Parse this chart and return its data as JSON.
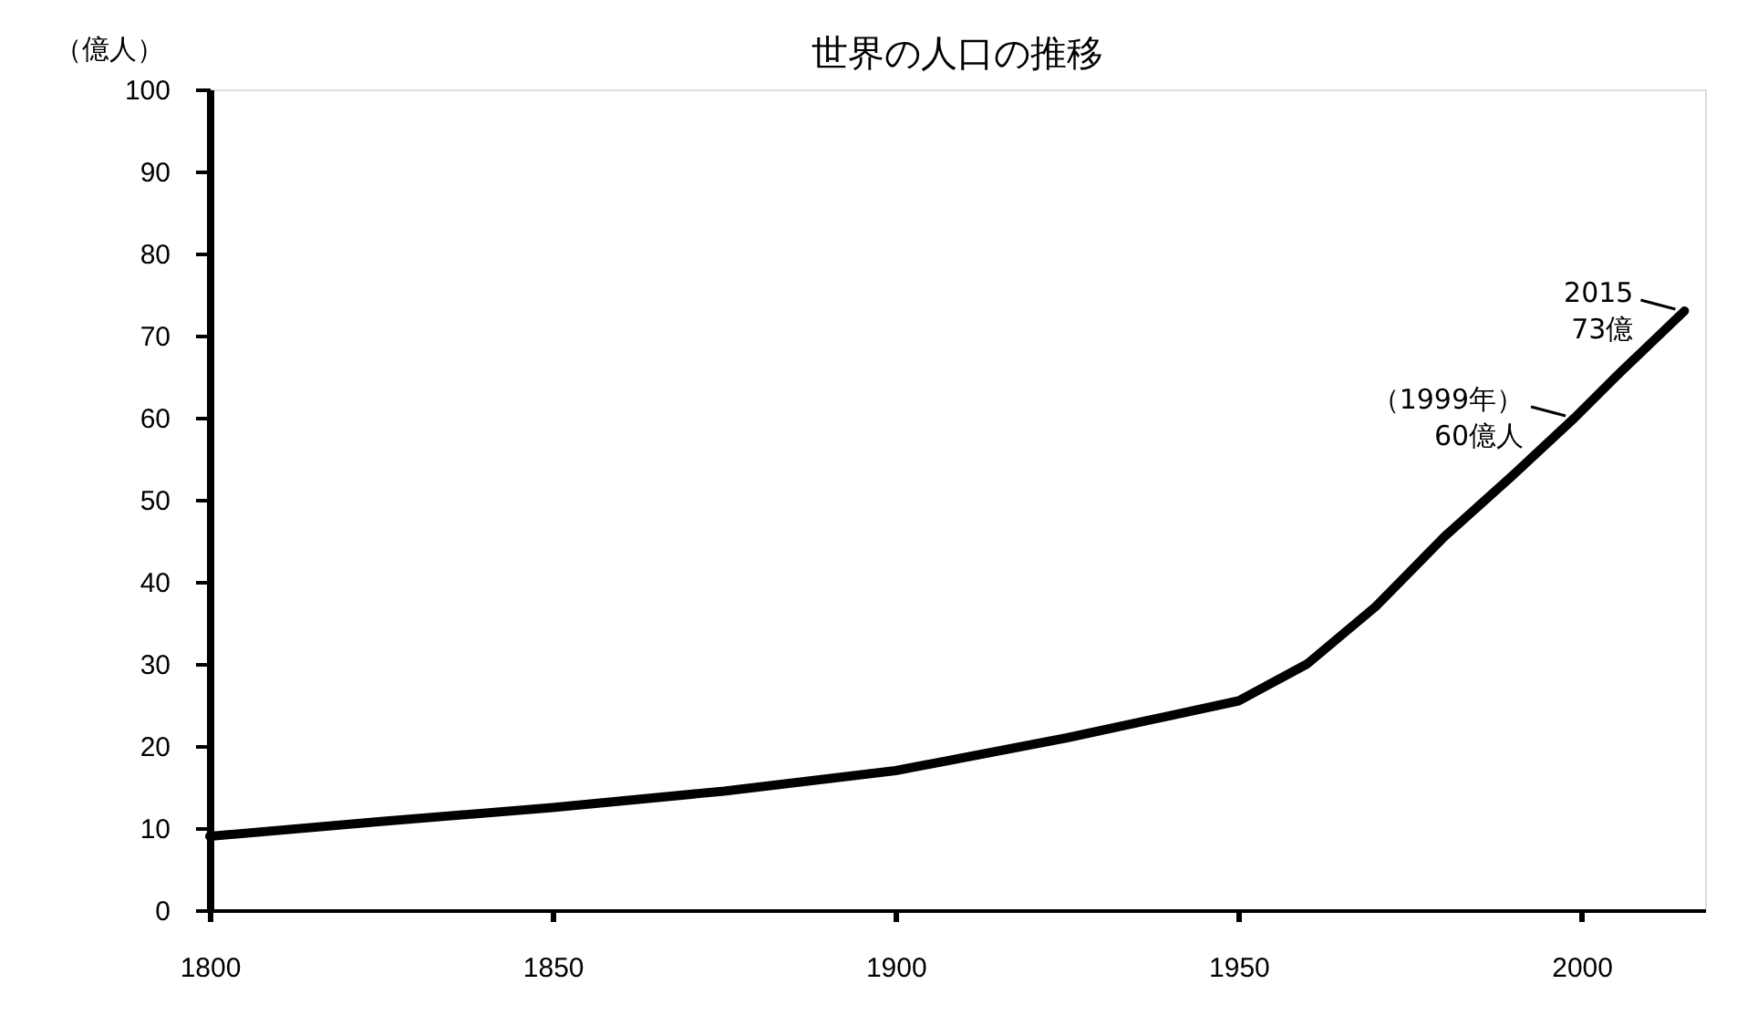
{
  "chart_data": {
    "type": "line",
    "title": "世界の人口の推移",
    "ylabel": "（億人）",
    "x": [
      1800,
      1825,
      1850,
      1875,
      1900,
      1925,
      1950,
      1960,
      1970,
      1980,
      1990,
      1999,
      2005,
      2010,
      2015
    ],
    "series": [
      {
        "color": "#000000",
        "values": [
          9,
          10.8,
          12.5,
          14.5,
          17,
          21,
          25.5,
          30,
          37,
          45.5,
          53,
          60,
          65,
          69,
          73
        ]
      }
    ],
    "xlim": [
      1800,
      2018
    ],
    "xticks": [
      1800,
      1850,
      1900,
      1950,
      2000
    ],
    "ylim": [
      0,
      100
    ],
    "yticks": [
      0,
      10,
      20,
      30,
      40,
      50,
      60,
      70,
      80,
      90,
      100
    ],
    "grid": false,
    "legend": false,
    "marker": "none",
    "line_style": "solid",
    "annotations": [
      {
        "text": "2015\n73億",
        "x": 2015,
        "y": 73
      },
      {
        "text": "（1999年）\n60億人",
        "x": 1999,
        "y": 60
      }
    ]
  }
}
